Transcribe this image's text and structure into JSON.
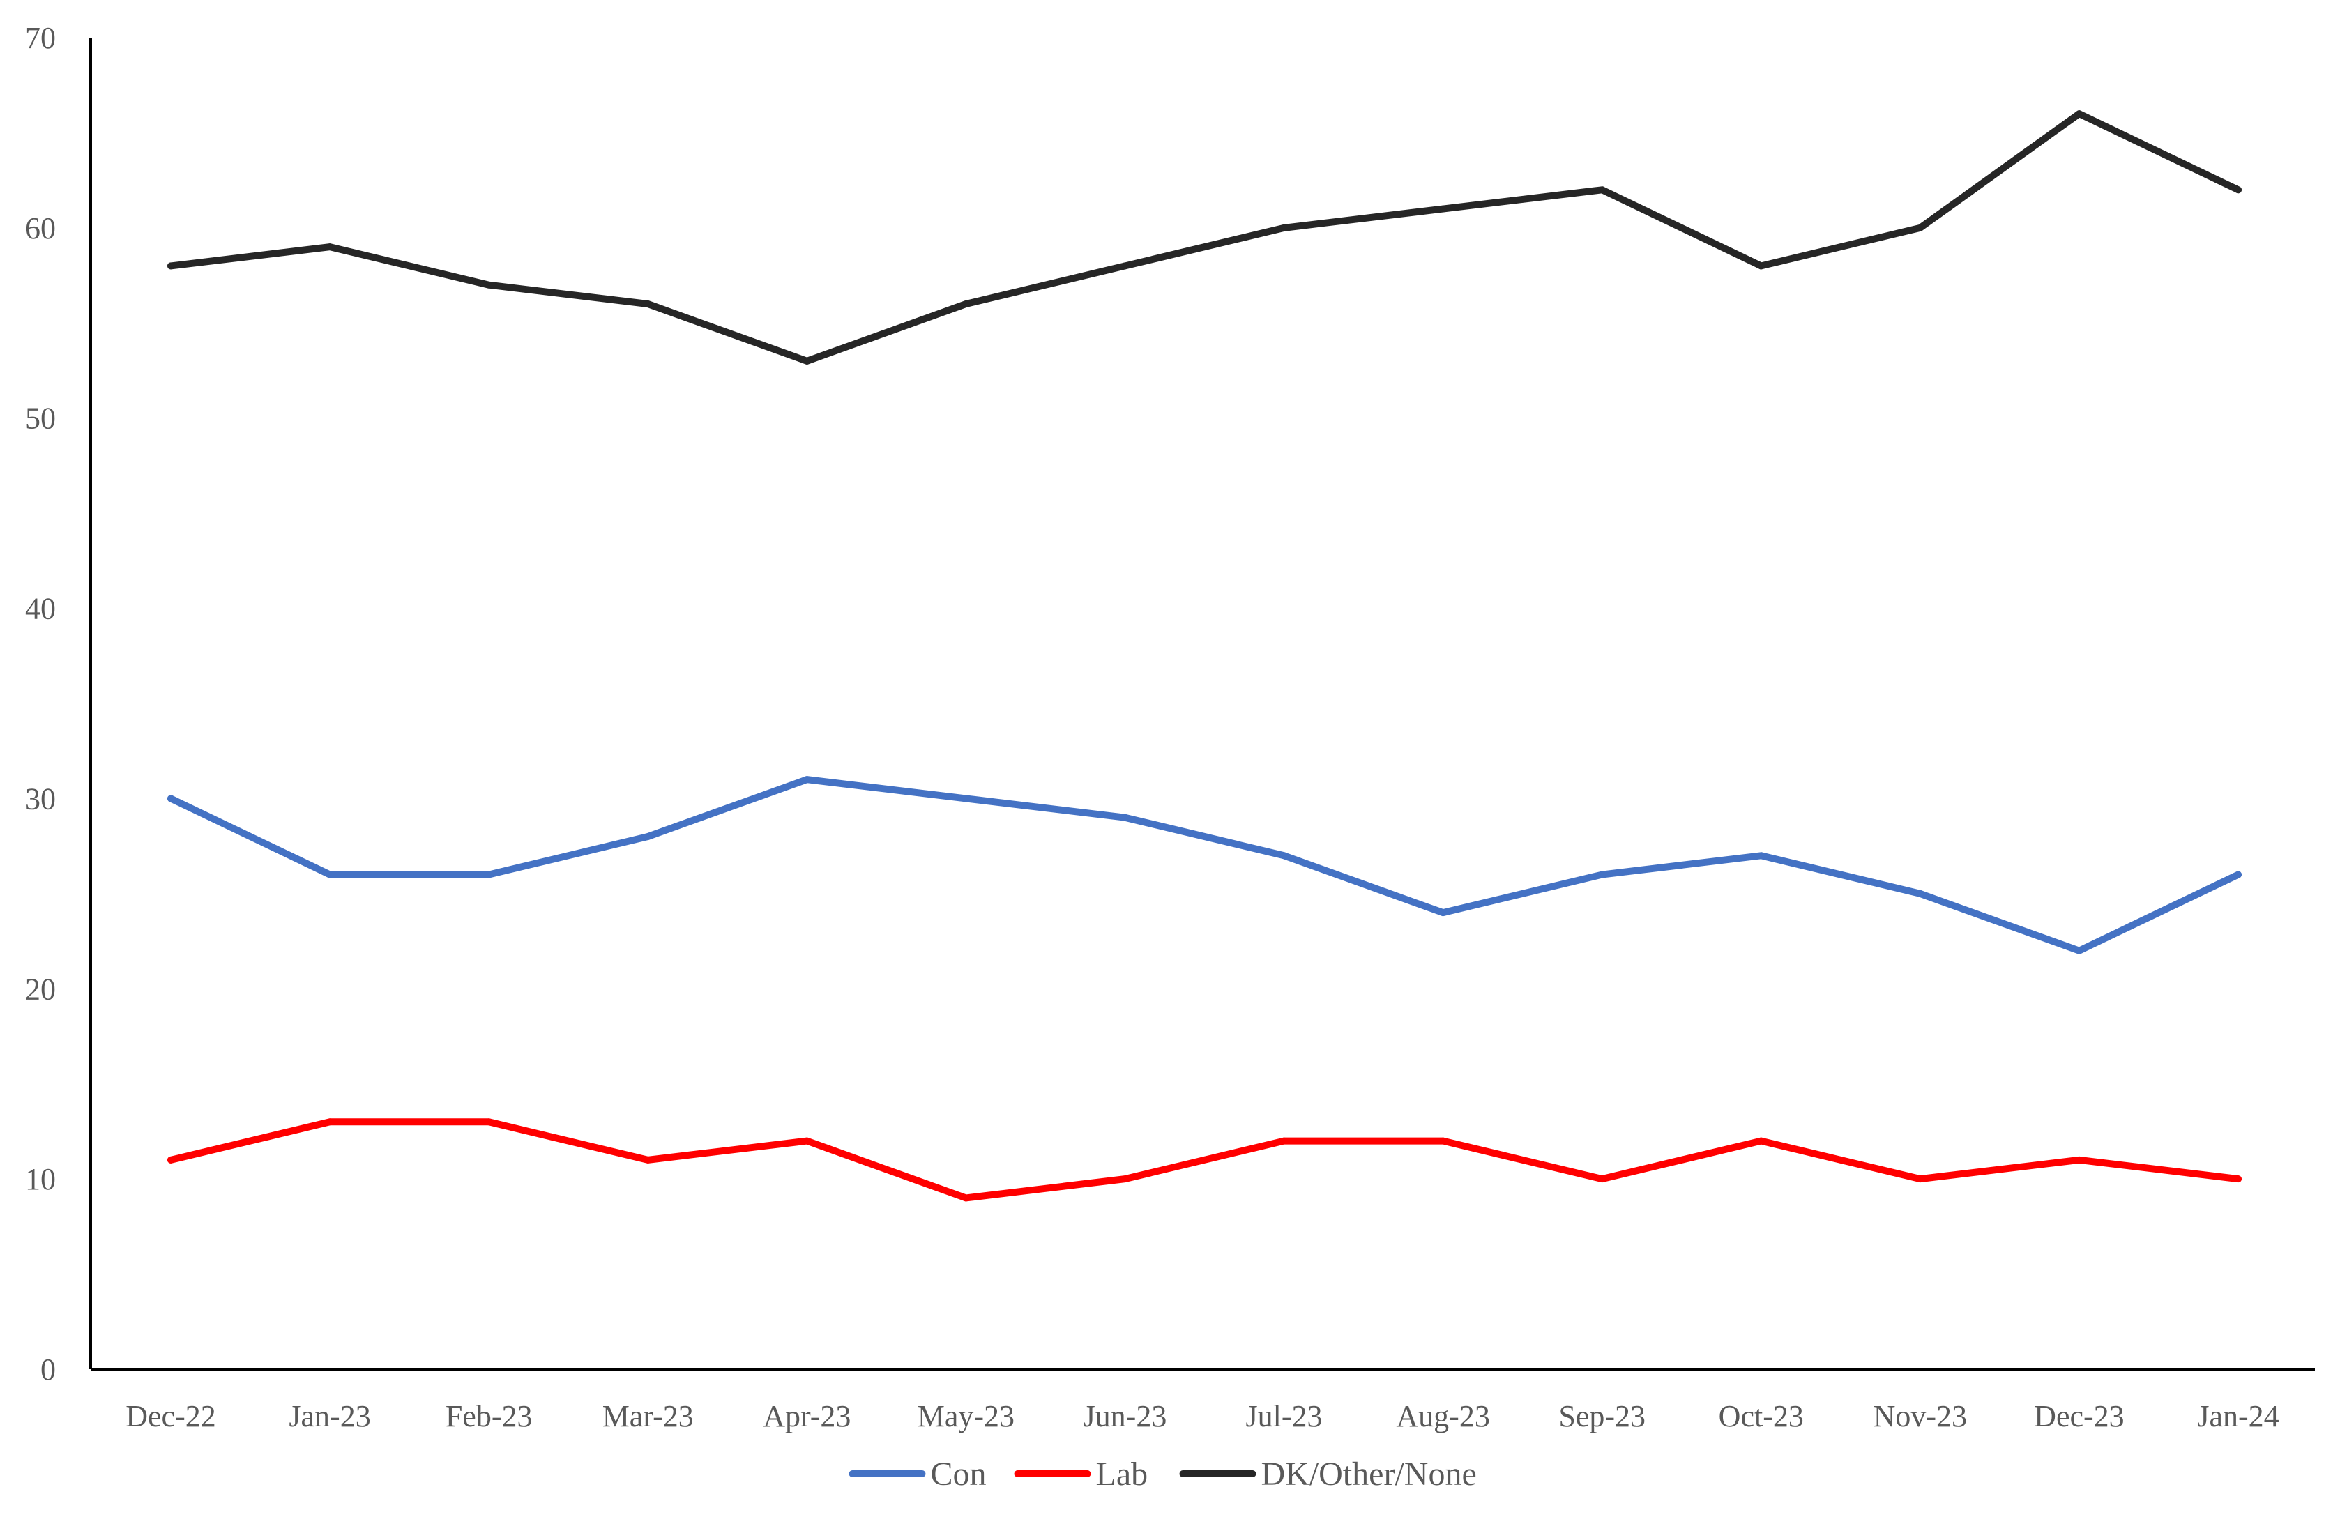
{
  "chart_data": {
    "type": "line",
    "title": "",
    "xlabel": "",
    "ylabel": "",
    "categories": [
      "Dec-22",
      "Jan-23",
      "Feb-23",
      "Mar-23",
      "Apr-23",
      "May-23",
      "Jun-23",
      "Jul-23",
      "Aug-23",
      "Sep-23",
      "Oct-23",
      "Nov-23",
      "Dec-23",
      "Jan-24"
    ],
    "ylim": [
      0,
      70
    ],
    "yticks": [
      0,
      10,
      20,
      30,
      40,
      50,
      60,
      70
    ],
    "yticks_labels": [
      "0",
      "10",
      "20",
      "30",
      "40",
      "50",
      "60",
      "70"
    ],
    "grid": false,
    "legend_position": "bottom",
    "series": [
      {
        "name": "Con",
        "color": "#4472C4",
        "values": [
          30,
          26,
          26,
          28,
          31,
          30,
          29,
          27,
          24,
          26,
          27,
          25,
          22,
          26
        ]
      },
      {
        "name": "Lab",
        "color": "#FF0000",
        "values": [
          11,
          13,
          13,
          11,
          12,
          9,
          10,
          12,
          12,
          10,
          12,
          10,
          11,
          10
        ]
      },
      {
        "name": "DK/Other/None",
        "color": "#262626",
        "values": [
          58,
          59,
          57,
          56,
          53,
          56,
          58,
          60,
          61,
          62,
          58,
          60,
          66,
          62
        ]
      }
    ]
  }
}
